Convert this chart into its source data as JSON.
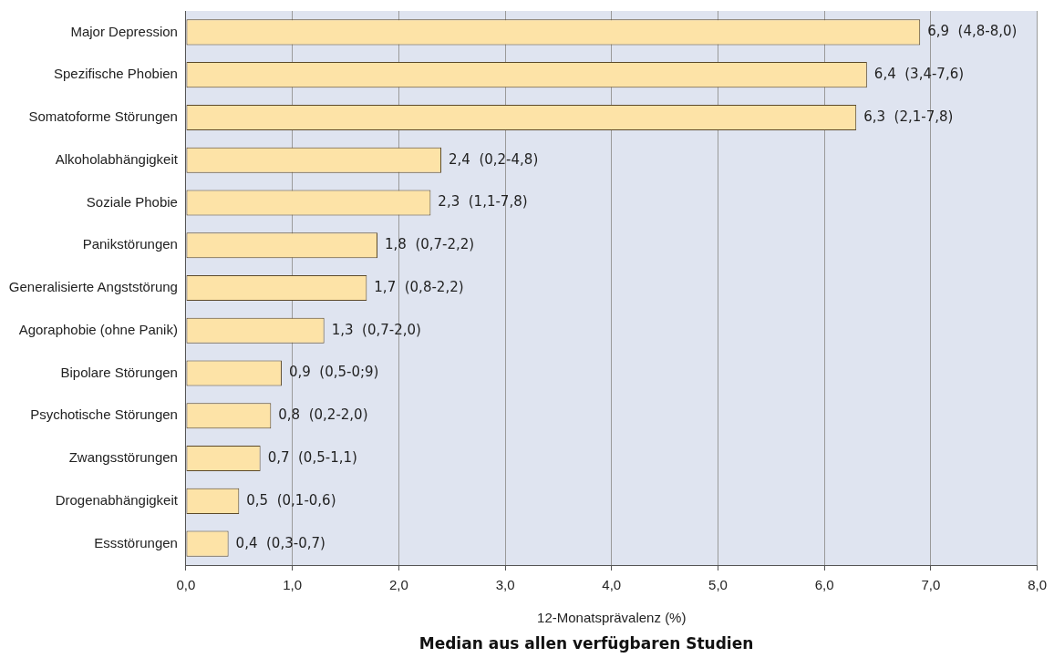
{
  "chart_data": {
    "type": "bar",
    "orientation": "horizontal",
    "xlabel": "12-Monatsprävalenz (%)",
    "annotations": [
      "Median aus allen verfügbaren Studien"
    ],
    "categories": [
      "Major Depression",
      "Spezifische Phobien",
      "Somatoforme Störungen",
      "Alkoholabhängigkeit",
      "Soziale Phobie",
      "Panikstörungen",
      "Generalisierte Angststörung",
      "Agoraphobie (ohne Panik)",
      "Bipolare Störungen",
      "Psychotische Störungen",
      "Zwangsstörungen",
      "Drogenabhängigkeit",
      "Essstörungen"
    ],
    "values": [
      6.9,
      6.4,
      6.3,
      2.4,
      2.3,
      1.8,
      1.7,
      1.3,
      0.9,
      0.8,
      0.7,
      0.5,
      0.4
    ],
    "value_labels": [
      "6,9  (4,8-8,0)",
      "6,4  (3,4-7,6)",
      "6,3  (2,1-7,8)",
      "2,4  (0,2-4,8)",
      "2,3  (1,1-7,8)",
      "1,8  (0,7-2,2)",
      "1,7  (0,8-2,2)",
      "1,3  (0,7-2,0)",
      "0,9  (0,5-0;9)",
      "0,8  (0,2-2,0)",
      "0,7  (0,5-1,1)",
      "0,5  (0,1-0,6)",
      "0,4  (0,3-0,7)"
    ],
    "color": "#fde3a7",
    "xlim": [
      0,
      8
    ],
    "xticks": [
      {
        "value": 0,
        "label": "0,0"
      },
      {
        "value": 1,
        "label": "1,0"
      },
      {
        "value": 2,
        "label": "2,0"
      },
      {
        "value": 3,
        "label": "3,0"
      },
      {
        "value": 4,
        "label": "4,0"
      },
      {
        "value": 5,
        "label": "5,0"
      },
      {
        "value": 6,
        "label": "6,0"
      },
      {
        "value": 7,
        "label": "7,0"
      },
      {
        "value": 8,
        "label": "8,0"
      }
    ],
    "grid": "x"
  }
}
